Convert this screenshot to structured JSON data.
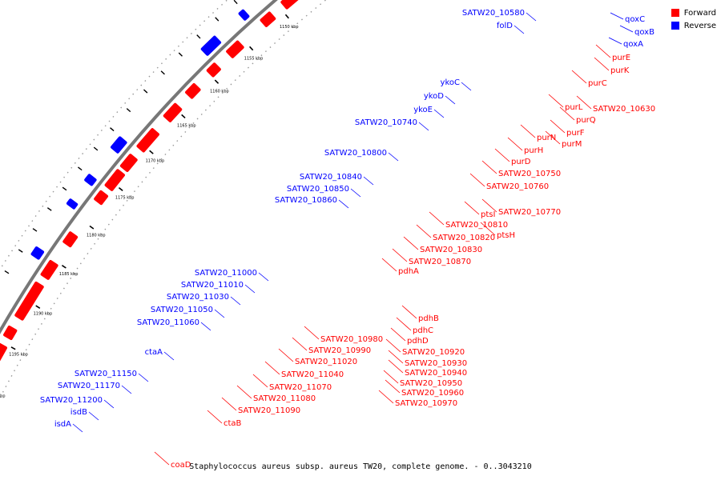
{
  "caption": "Staphylococcus aureus subsp. aureus TW20, complete genome. - 0..3043210",
  "legend": [
    {
      "label": "Forward",
      "color": "#ff0000"
    },
    {
      "label": "Reverse",
      "color": "#0000ff"
    }
  ],
  "colors": {
    "forward": "#ff0000",
    "reverse": "#0000ff",
    "backbone": "#666666"
  },
  "ticks": [
    "1130 kbp",
    "1135 kbp",
    "1140 kbp",
    "1145 kbp",
    "1150 kbp",
    "1155 kbp",
    "1160 kbp",
    "1165 kbp",
    "1170 kbp",
    "1175 kbp",
    "1180 kbp",
    "1185 kbp",
    "1190 kbp",
    "1195 kbp",
    "1200 kbp"
  ],
  "reverse_labels": [
    "qoxC",
    "qoxB",
    "qoxA",
    "SATW20_10580",
    "folD",
    "ykoC",
    "ykoD",
    "ykoE",
    "SATW20_10740",
    "SATW20_10800",
    "SATW20_10840",
    "SATW20_10850",
    "SATW20_10860",
    "SATW20_11000",
    "SATW20_11010",
    "SATW20_11030",
    "SATW20_11050",
    "SATW20_11060",
    "ctaA",
    "SATW20_11150",
    "SATW20_11170",
    "SATW20_11200",
    "isdB",
    "isdA"
  ],
  "forward_labels": [
    "purE",
    "purK",
    "purC",
    "SATW20_10630",
    "purL",
    "purQ",
    "purN",
    "purF",
    "purM",
    "purH",
    "purD",
    "SATW20_10750",
    "SATW20_10760",
    "SATW20_10770",
    "ptsI",
    "SATW20_10810",
    "ptsH",
    "SATW20_10820",
    "SATW20_10830",
    "SATW20_10870",
    "pdhA",
    "pdhB",
    "pdhC",
    "pdhD",
    "SATW20_10920",
    "SATW20_10930",
    "SATW20_10940",
    "SATW20_10950",
    "SATW20_10960",
    "SATW20_10970",
    "SATW20_10980",
    "SATW20_10990",
    "SATW20_11020",
    "SATW20_11040",
    "SATW20_11070",
    "SATW20_11080",
    "SATW20_11090",
    "ctaB",
    "coaD"
  ]
}
